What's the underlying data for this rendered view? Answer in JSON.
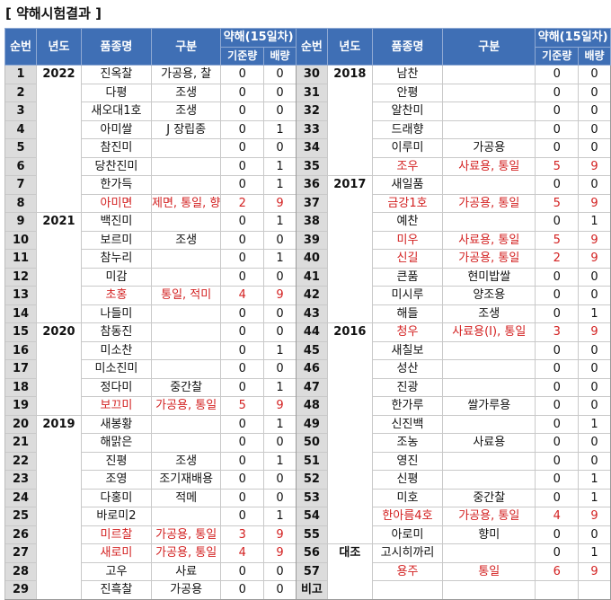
{
  "title": "[ 약해시험결과 ]",
  "header": {
    "sno": "순번",
    "year": "년도",
    "variety": "품종명",
    "type": "구분",
    "damage": "약해(15일차)",
    "standard": "기준량",
    "double": "배량"
  },
  "left": [
    {
      "no": "1",
      "year": "2022",
      "variety": "진옥찰",
      "type": "가공용, 찰",
      "std": "0",
      "dbl": "0",
      "red": false
    },
    {
      "no": "2",
      "year": "",
      "variety": "다평",
      "type": "조생",
      "std": "0",
      "dbl": "0",
      "red": false
    },
    {
      "no": "3",
      "year": "",
      "variety": "새오대1호",
      "type": "조생",
      "std": "0",
      "dbl": "0",
      "red": false
    },
    {
      "no": "4",
      "year": "",
      "variety": "아미쌀",
      "type": "J 장립종",
      "std": "0",
      "dbl": "1",
      "red": false
    },
    {
      "no": "5",
      "year": "",
      "variety": "참진미",
      "type": "",
      "std": "0",
      "dbl": "0",
      "red": false
    },
    {
      "no": "6",
      "year": "",
      "variety": "당찬진미",
      "type": "",
      "std": "0",
      "dbl": "1",
      "red": false
    },
    {
      "no": "7",
      "year": "",
      "variety": "한가득",
      "type": "",
      "std": "0",
      "dbl": "1",
      "red": false
    },
    {
      "no": "8",
      "year": "",
      "variety": "아미면",
      "type": "제면, 통일, 향",
      "std": "2",
      "dbl": "9",
      "red": true
    },
    {
      "no": "9",
      "year": "2021",
      "variety": "백진미",
      "type": "",
      "std": "0",
      "dbl": "1",
      "red": false
    },
    {
      "no": "10",
      "year": "",
      "variety": "보르미",
      "type": "조생",
      "std": "0",
      "dbl": "0",
      "red": false
    },
    {
      "no": "11",
      "year": "",
      "variety": "참누리",
      "type": "",
      "std": "0",
      "dbl": "1",
      "red": false
    },
    {
      "no": "12",
      "year": "",
      "variety": "미감",
      "type": "",
      "std": "0",
      "dbl": "0",
      "red": false
    },
    {
      "no": "13",
      "year": "",
      "variety": "초홍",
      "type": "통일, 적미",
      "std": "4",
      "dbl": "9",
      "red": true
    },
    {
      "no": "14",
      "year": "",
      "variety": "나들미",
      "type": "",
      "std": "0",
      "dbl": "0",
      "red": false
    },
    {
      "no": "15",
      "year": "2020",
      "variety": "참동진",
      "type": "",
      "std": "0",
      "dbl": "0",
      "red": false
    },
    {
      "no": "16",
      "year": "",
      "variety": "미소찬",
      "type": "",
      "std": "0",
      "dbl": "1",
      "red": false
    },
    {
      "no": "17",
      "year": "",
      "variety": "미소진미",
      "type": "",
      "std": "0",
      "dbl": "0",
      "red": false
    },
    {
      "no": "18",
      "year": "",
      "variety": "정다미",
      "type": "중간찰",
      "std": "0",
      "dbl": "1",
      "red": false
    },
    {
      "no": "19",
      "year": "",
      "variety": "보끄미",
      "type": "가공용, 통일",
      "std": "5",
      "dbl": "9",
      "red": true
    },
    {
      "no": "20",
      "year": "2019",
      "variety": "새봉황",
      "type": "",
      "std": "0",
      "dbl": "1",
      "red": false
    },
    {
      "no": "21",
      "year": "",
      "variety": "해맑은",
      "type": "",
      "std": "0",
      "dbl": "0",
      "red": false
    },
    {
      "no": "22",
      "year": "",
      "variety": "진평",
      "type": "조생",
      "std": "0",
      "dbl": "1",
      "red": false
    },
    {
      "no": "23",
      "year": "",
      "variety": "조영",
      "type": "조기재배용",
      "std": "0",
      "dbl": "0",
      "red": false
    },
    {
      "no": "24",
      "year": "",
      "variety": "다홍미",
      "type": "적메",
      "std": "0",
      "dbl": "0",
      "red": false
    },
    {
      "no": "25",
      "year": "",
      "variety": "바로미2",
      "type": "",
      "std": "0",
      "dbl": "1",
      "red": false
    },
    {
      "no": "26",
      "year": "",
      "variety": "미르찰",
      "type": "가공용, 통일",
      "std": "3",
      "dbl": "9",
      "red": true
    },
    {
      "no": "27",
      "year": "",
      "variety": "새로미",
      "type": "가공용, 통일",
      "std": "4",
      "dbl": "9",
      "red": true
    },
    {
      "no": "28",
      "year": "",
      "variety": "고우",
      "type": "사료",
      "std": "0",
      "dbl": "0",
      "red": false
    },
    {
      "no": "29",
      "year": "",
      "variety": "진흑찰",
      "type": "가공용",
      "std": "0",
      "dbl": "0",
      "red": false
    }
  ],
  "right": [
    {
      "no": "30",
      "year": "2018",
      "variety": "남찬",
      "type": "",
      "std": "0",
      "dbl": "0",
      "red": false
    },
    {
      "no": "31",
      "year": "",
      "variety": "안평",
      "type": "",
      "std": "0",
      "dbl": "0",
      "red": false
    },
    {
      "no": "32",
      "year": "",
      "variety": "알찬미",
      "type": "",
      "std": "0",
      "dbl": "0",
      "red": false
    },
    {
      "no": "33",
      "year": "",
      "variety": "드래향",
      "type": "",
      "std": "0",
      "dbl": "0",
      "red": false
    },
    {
      "no": "34",
      "year": "",
      "variety": "이루미",
      "type": "가공용",
      "std": "0",
      "dbl": "0",
      "red": false
    },
    {
      "no": "35",
      "year": "",
      "variety": "조우",
      "type": "사료용, 통일",
      "std": "5",
      "dbl": "9",
      "red": true
    },
    {
      "no": "36",
      "year": "2017",
      "variety": "새일품",
      "type": "",
      "std": "0",
      "dbl": "0",
      "red": false
    },
    {
      "no": "37",
      "year": "",
      "variety": "금강1호",
      "type": "가공용, 통일",
      "std": "5",
      "dbl": "9",
      "red": true
    },
    {
      "no": "38",
      "year": "",
      "variety": "예찬",
      "type": "",
      "std": "0",
      "dbl": "1",
      "red": false
    },
    {
      "no": "39",
      "year": "",
      "variety": "미우",
      "type": "사료용, 통일",
      "std": "5",
      "dbl": "9",
      "red": true
    },
    {
      "no": "40",
      "year": "",
      "variety": "신길",
      "type": "가공용, 통일",
      "std": "2",
      "dbl": "9",
      "red": true
    },
    {
      "no": "41",
      "year": "",
      "variety": "큰품",
      "type": "현미밥쌀",
      "std": "0",
      "dbl": "0",
      "red": false
    },
    {
      "no": "42",
      "year": "",
      "variety": "미시루",
      "type": "양조용",
      "std": "0",
      "dbl": "0",
      "red": false
    },
    {
      "no": "43",
      "year": "",
      "variety": "해들",
      "type": "조생",
      "std": "0",
      "dbl": "1",
      "red": false
    },
    {
      "no": "44",
      "year": "2016",
      "variety": "청우",
      "type": "사료용(I), 통일",
      "std": "3",
      "dbl": "9",
      "red": true
    },
    {
      "no": "45",
      "year": "",
      "variety": "새칠보",
      "type": "",
      "std": "0",
      "dbl": "0",
      "red": false
    },
    {
      "no": "46",
      "year": "",
      "variety": "성산",
      "type": "",
      "std": "0",
      "dbl": "0",
      "red": false
    },
    {
      "no": "47",
      "year": "",
      "variety": "진광",
      "type": "",
      "std": "0",
      "dbl": "0",
      "red": false
    },
    {
      "no": "48",
      "year": "",
      "variety": "한가루",
      "type": "쌀가루용",
      "std": "0",
      "dbl": "0",
      "red": false
    },
    {
      "no": "49",
      "year": "",
      "variety": "신진백",
      "type": "",
      "std": "0",
      "dbl": "1",
      "red": false
    },
    {
      "no": "50",
      "year": "",
      "variety": "조농",
      "type": "사료용",
      "std": "0",
      "dbl": "0",
      "red": false
    },
    {
      "no": "51",
      "year": "",
      "variety": "영진",
      "type": "",
      "std": "0",
      "dbl": "0",
      "red": false
    },
    {
      "no": "52",
      "year": "",
      "variety": "신평",
      "type": "",
      "std": "0",
      "dbl": "1",
      "red": false
    },
    {
      "no": "53",
      "year": "",
      "variety": "미호",
      "type": "중간찰",
      "std": "0",
      "dbl": "1",
      "red": false
    },
    {
      "no": "54",
      "year": "",
      "variety": "한아름4호",
      "type": "가공용, 통일",
      "std": "4",
      "dbl": "9",
      "red": true
    },
    {
      "no": "55",
      "year": "",
      "variety": "아로미",
      "type": "향미",
      "std": "0",
      "dbl": "0",
      "red": false
    },
    {
      "no": "56",
      "year": "대조",
      "variety": "고시히까리",
      "type": "",
      "std": "0",
      "dbl": "1",
      "red": false
    },
    {
      "no": "57",
      "year": "",
      "variety": "용주",
      "type": "통일",
      "std": "6",
      "dbl": "9",
      "red": true
    },
    {
      "no": "비고",
      "year": "",
      "variety": "",
      "type": "",
      "std": "",
      "dbl": "",
      "red": false
    }
  ],
  "colors": {
    "header_bg": "#3f6fb5",
    "header_text": "#ffffff",
    "sno_bg": "#dcdcdc",
    "highlight": "#d32121"
  }
}
